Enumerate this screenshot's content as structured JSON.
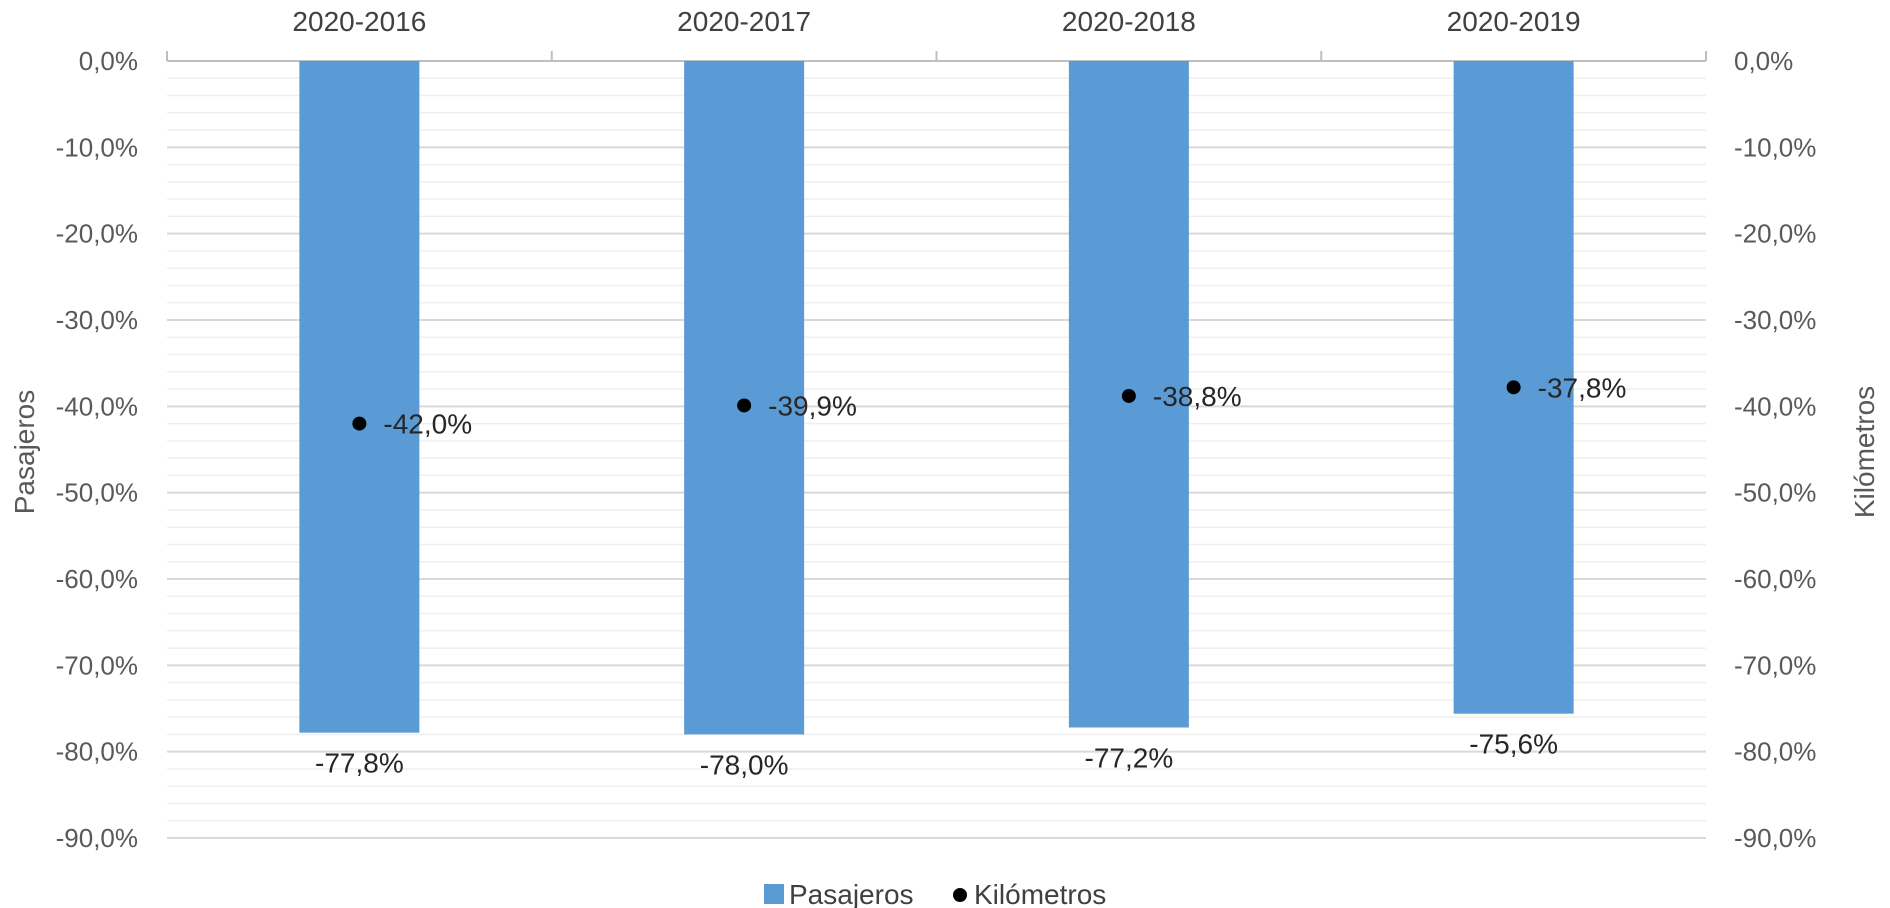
{
  "chart_data": {
    "type": "bar",
    "categories": [
      "2020-2016",
      "2020-2017",
      "2020-2018",
      "2020-2019"
    ],
    "series": [
      {
        "name": "Pasajeros",
        "type": "bar",
        "axis": "left",
        "color": "#5B9BD5",
        "values": [
          -77.8,
          -78.0,
          -77.2,
          -75.6
        ],
        "labels": [
          "-77,8%",
          "-78,0%",
          "-77,2%",
          "-75,6%"
        ]
      },
      {
        "name": "Kilómetros",
        "type": "scatter",
        "axis": "right",
        "color": "#000000",
        "values": [
          -42.0,
          -39.9,
          -38.8,
          -37.8
        ],
        "labels": [
          "-42,0%",
          "-39,9%",
          "-38,8%",
          "-37,8%"
        ]
      }
    ],
    "ylabel": "Pasajeros",
    "y2label": "Kilómetros",
    "ylim": [
      -90,
      0
    ],
    "y2lim": [
      -90,
      0
    ],
    "yticks": [
      "0,0%",
      "-10,0%",
      "-20,0%",
      "-30,0%",
      "-40,0%",
      "-50,0%",
      "-60,0%",
      "-70,0%",
      "-80,0%",
      "-90,0%"
    ],
    "y2ticks": [
      "0,0%",
      "-10,0%",
      "-20,0%",
      "-30,0%",
      "-40,0%",
      "-50,0%",
      "-60,0%",
      "-70,0%",
      "-80,0%",
      "-90,0%"
    ],
    "category_axis_position": "top",
    "grid": true,
    "minor_grid": true,
    "legend_position": "bottom"
  }
}
